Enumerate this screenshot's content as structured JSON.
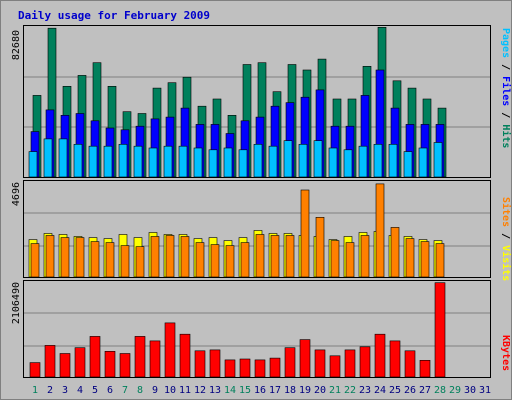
{
  "title": "Daily usage for February 2009",
  "colors": {
    "hits": "#00805c",
    "files": "#0000ff",
    "pages": "#00c0ff",
    "visits": "#ffff00",
    "sites": "#ff8000",
    "kbytes": "#ff0000",
    "weekday_label": "#000080",
    "weekend_label": "#00805c"
  },
  "panels": {
    "top": {
      "max_label": "82680",
      "legend": [
        "Pages",
        "Files",
        "Hits"
      ]
    },
    "middle": {
      "max_label": "4696",
      "legend": [
        "Sites",
        "Visits"
      ]
    },
    "bottom": {
      "max_label": "2106490",
      "legend": [
        "KBytes"
      ]
    }
  },
  "chart_data": [
    {
      "type": "bar",
      "title": "Daily usage for February 2009",
      "ylabel": "Pages / Files / Hits",
      "ylim": [
        0,
        82680
      ],
      "grid": true,
      "x": [
        "1",
        "2",
        "3",
        "4",
        "5",
        "6",
        "7",
        "8",
        "9",
        "10",
        "11",
        "12",
        "13",
        "14",
        "15",
        "16",
        "17",
        "18",
        "19",
        "20",
        "21",
        "22",
        "23",
        "24",
        "25",
        "26",
        "27",
        "28"
      ],
      "series": [
        {
          "name": "Hits",
          "values": [
            45000,
            82000,
            50000,
            56000,
            63000,
            50000,
            36000,
            35000,
            49000,
            52000,
            55000,
            39000,
            43000,
            34000,
            62000,
            63000,
            47000,
            62000,
            59000,
            65000,
            43000,
            43000,
            61000,
            82500,
            53000,
            49000,
            43000,
            38000
          ]
        },
        {
          "name": "Files",
          "values": [
            25000,
            37000,
            34000,
            35000,
            31000,
            27000,
            26000,
            28000,
            32000,
            33000,
            38000,
            29000,
            29000,
            24000,
            31000,
            33000,
            39000,
            41000,
            44000,
            48000,
            28000,
            28000,
            45000,
            59000,
            38000,
            29000,
            29000,
            29000
          ]
        },
        {
          "name": "Pages",
          "values": [
            14000,
            21000,
            21000,
            18000,
            17000,
            17000,
            18000,
            17000,
            16000,
            17000,
            17000,
            16000,
            15000,
            16000,
            15000,
            18000,
            17000,
            20000,
            18000,
            20000,
            16000,
            15000,
            17000,
            18000,
            18000,
            14000,
            16000,
            19000
          ]
        }
      ]
    },
    {
      "type": "bar",
      "ylabel": "Sites / Visits",
      "ylim": [
        0,
        4696
      ],
      "grid": true,
      "x": [
        "1",
        "2",
        "3",
        "4",
        "5",
        "6",
        "7",
        "8",
        "9",
        "10",
        "11",
        "12",
        "13",
        "14",
        "15",
        "16",
        "17",
        "18",
        "19",
        "20",
        "21",
        "22",
        "23",
        "24",
        "25",
        "26",
        "27",
        "28"
      ],
      "series": [
        {
          "name": "Visits",
          "values": [
            1850,
            2150,
            2100,
            2000,
            1950,
            1900,
            2100,
            1950,
            2200,
            2100,
            2100,
            1900,
            1950,
            1800,
            1950,
            2300,
            2150,
            2150,
            2050,
            2000,
            1850,
            2000,
            2200,
            2250,
            2050,
            2000,
            1850,
            1800
          ]
        },
        {
          "name": "Sites",
          "values": [
            1650,
            2050,
            1950,
            1950,
            1750,
            1700,
            1550,
            1500,
            2000,
            2050,
            2000,
            1700,
            1600,
            1550,
            1700,
            2100,
            2050,
            2050,
            4300,
            2950,
            1800,
            1700,
            2050,
            4600,
            2450,
            1900,
            1750,
            1650
          ]
        }
      ]
    },
    {
      "type": "bar",
      "ylabel": "KBytes",
      "ylim": [
        0,
        2106490
      ],
      "grid": true,
      "x": [
        "1",
        "2",
        "3",
        "4",
        "5",
        "6",
        "7",
        "8",
        "9",
        "10",
        "11",
        "12",
        "13",
        "14",
        "15",
        "16",
        "17",
        "18",
        "19",
        "20",
        "21",
        "22",
        "23",
        "24",
        "25",
        "26",
        "27",
        "28"
      ],
      "series": [
        {
          "name": "KBytes",
          "values": [
            320000,
            700000,
            520000,
            650000,
            900000,
            570000,
            520000,
            900000,
            800000,
            1200000,
            950000,
            580000,
            600000,
            380000,
            400000,
            380000,
            420000,
            650000,
            830000,
            600000,
            470000,
            600000,
            670000,
            950000,
            800000,
            580000,
            370000,
            2090000
          ]
        }
      ]
    }
  ],
  "days": [
    "1",
    "2",
    "3",
    "4",
    "5",
    "6",
    "7",
    "8",
    "9",
    "10",
    "11",
    "12",
    "13",
    "14",
    "15",
    "16",
    "17",
    "18",
    "19",
    "20",
    "21",
    "22",
    "23",
    "24",
    "25",
    "26",
    "27",
    "28",
    "29",
    "30",
    "31"
  ],
  "weekend_days": [
    "1",
    "7",
    "8",
    "14",
    "15",
    "21",
    "22",
    "28",
    "29"
  ]
}
